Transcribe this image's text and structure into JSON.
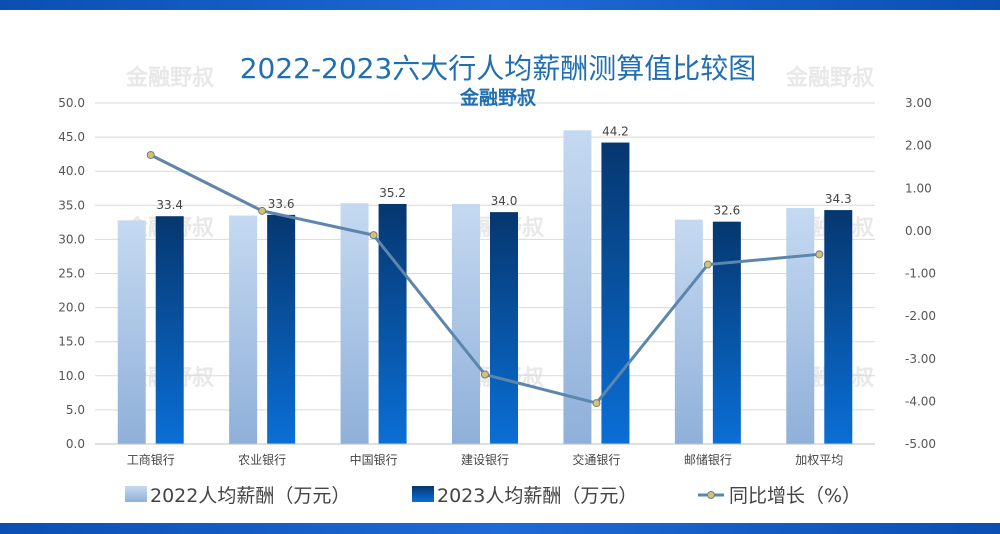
{
  "watermark": "金融野叔",
  "chart_data": {
    "type": "bar",
    "title": "2022-2023六大行人均薪酬测算值比较图",
    "subtitle": "金融野叔",
    "categories": [
      "工商银行",
      "农业银行",
      "中国银行",
      "建设银行",
      "交通银行",
      "邮储银行",
      "加权平均"
    ],
    "series": [
      {
        "name": "2022人均薪酬（万元）",
        "type": "bar",
        "axis": "left",
        "values": [
          32.8,
          33.5,
          35.3,
          35.2,
          46.0,
          32.9,
          34.6
        ],
        "color": "#a9c6e8"
      },
      {
        "name": "2023人均薪酬（万元）",
        "type": "bar",
        "axis": "left",
        "values": [
          33.4,
          33.6,
          35.2,
          34.0,
          44.2,
          32.6,
          34.3
        ],
        "labels": [
          "33.4",
          "33.6",
          "35.2",
          "34.0",
          "44.2",
          "32.6",
          "34.3"
        ],
        "color": "#0a4c96"
      },
      {
        "name": "同比增长（%）",
        "type": "line",
        "axis": "right",
        "values": [
          1.78,
          0.47,
          -0.1,
          -3.37,
          -4.04,
          -0.79,
          -0.55
        ],
        "color": "#5c86ad"
      }
    ],
    "y_left": {
      "min": 0,
      "max": 50,
      "ticks": [
        "0.0",
        "5.0",
        "10.0",
        "15.0",
        "20.0",
        "25.0",
        "30.0",
        "35.0",
        "40.0",
        "45.0",
        "50.0"
      ]
    },
    "y_right": {
      "min": -5,
      "max": 3,
      "ticks": [
        "-5.00",
        "-4.00",
        "-3.00",
        "-2.00",
        "-1.00",
        "0.00",
        "1.00",
        "2.00",
        "3.00"
      ]
    },
    "grid": true,
    "legend_position": "bottom"
  }
}
